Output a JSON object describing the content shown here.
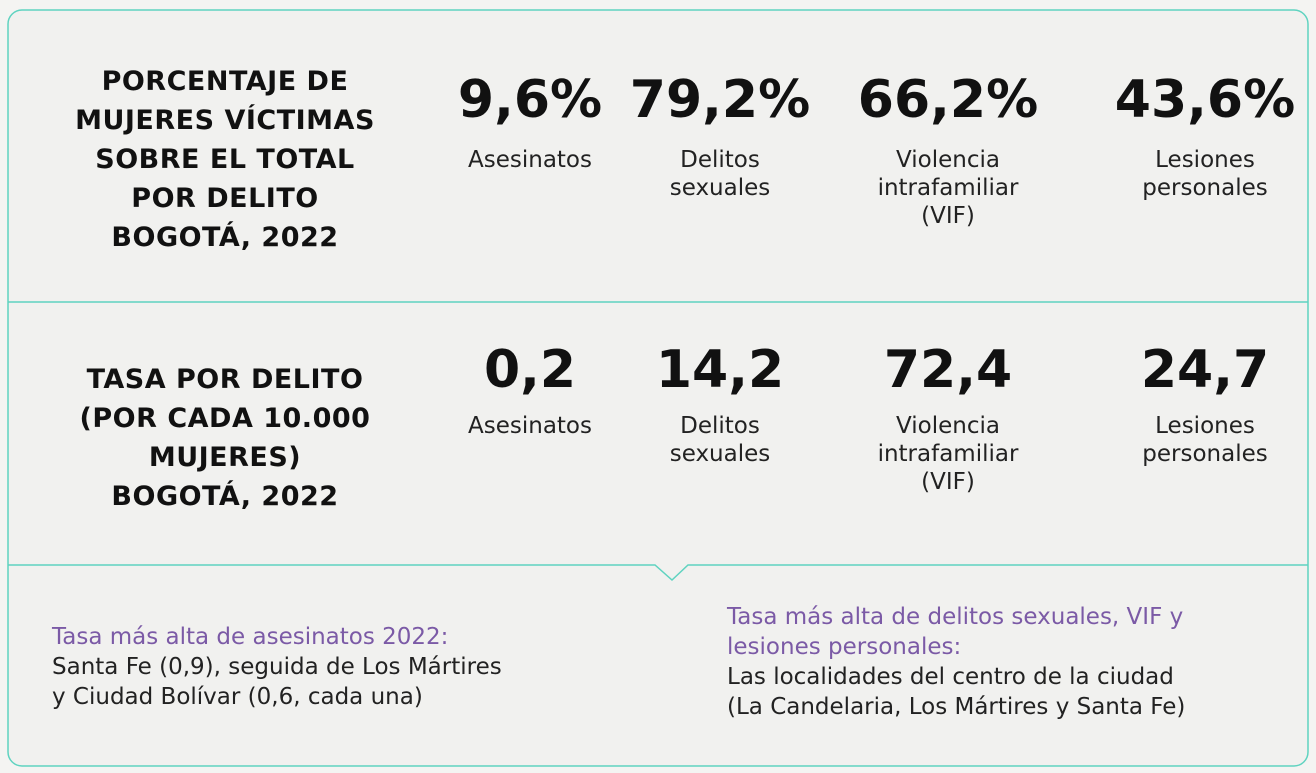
{
  "sections": [
    {
      "title": [
        "PORCENTAJE DE",
        "MUJERES VÍCTIMAS",
        "SOBRE EL TOTAL",
        "POR DELITO",
        "BOGOTÁ, 2022"
      ],
      "stats": [
        {
          "value": "9,6%",
          "label": [
            "Asesinatos"
          ]
        },
        {
          "value": "79,2%",
          "label": [
            "Delitos",
            "sexuales"
          ]
        },
        {
          "value": "66,2%",
          "label": [
            "Violencia",
            "intrafamiliar",
            "(VIF)"
          ]
        },
        {
          "value": "43,6%",
          "label": [
            "Lesiones",
            "personales"
          ]
        }
      ]
    },
    {
      "title": [
        "TASA POR DELITO",
        "(POR CADA 10.000",
        "MUJERES)",
        "BOGOTÁ, 2022"
      ],
      "stats": [
        {
          "value": "0,2",
          "label": [
            "Asesinatos"
          ]
        },
        {
          "value": "14,2",
          "label": [
            "Delitos",
            "sexuales"
          ]
        },
        {
          "value": "72,4",
          "label": [
            "Violencia",
            "intrafamiliar",
            "(VIF)"
          ]
        },
        {
          "value": "24,7",
          "label": [
            "Lesiones",
            "personales"
          ]
        }
      ]
    }
  ],
  "notes": [
    {
      "heading": [
        "Tasa más alta de asesinatos 2022:"
      ],
      "body": [
        "Santa Fe (0,9), seguida de Los Mártires",
        "y Ciudad Bolívar (0,6, cada una)"
      ]
    },
    {
      "heading": [
        "Tasa más alta de delitos sexuales, VIF y",
        "lesiones personales:"
      ],
      "body": [
        "Las localidades del centro de la ciudad",
        "(La Candelaria, Los Mártires y Santa Fe)"
      ]
    }
  ]
}
